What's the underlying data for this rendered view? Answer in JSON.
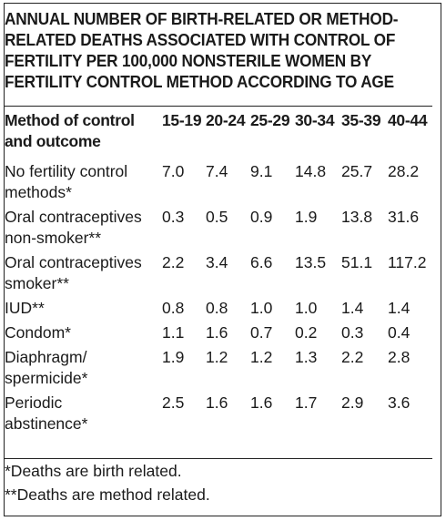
{
  "title_lines": [
    "ANNUAL NUMBER OF BIRTH-RELATED OR METHOD-",
    "RELATED DEATHS ASSOCIATED WITH CONTROL OF",
    "FERTILITY PER 100,000 NONSTERILE WOMEN BY",
    "FERTILITY CONTROL METHOD ACCORDING TO AGE"
  ],
  "table": {
    "header": {
      "method_line1": "Method of control",
      "method_line2": "and outcome",
      "ages": [
        "15-19",
        "20-24",
        "25-29",
        "30-34",
        "35-39",
        "40-44"
      ]
    },
    "rows": [
      {
        "label1": "No fertility control",
        "label2": "methods*",
        "values": [
          "7.0",
          "7.4",
          "9.1",
          "14.8",
          "25.7",
          "28.2"
        ]
      },
      {
        "label1": "Oral contraceptives",
        "label2": "non-smoker**",
        "values": [
          "0.3",
          "0.5",
          "0.9",
          "1.9",
          "13.8",
          "31.6"
        ]
      },
      {
        "label1": "Oral contraceptives",
        "label2": "smoker**",
        "values": [
          "2.2",
          "3.4",
          "6.6",
          "13.5",
          "51.1",
          "117.2"
        ]
      },
      {
        "label1": "IUD**",
        "label2": "",
        "values": [
          "0.8",
          "0.8",
          "1.0",
          "1.0",
          "1.4",
          "1.4"
        ]
      },
      {
        "label1": "Condom*",
        "label2": "",
        "values": [
          "1.1",
          "1.6",
          "0.7",
          "0.2",
          "0.3",
          "0.4"
        ]
      },
      {
        "label1": "Diaphragm/",
        "label2": "spermicide*",
        "values": [
          "1.9",
          "1.2",
          "1.2",
          "1.3",
          "2.2",
          "2.8"
        ]
      },
      {
        "label1": "Periodic",
        "label2": "abstinence*",
        "values": [
          "2.5",
          "1.6",
          "1.6",
          "1.7",
          "2.9",
          "3.6"
        ]
      }
    ]
  },
  "footnotes": [
    "*Deaths are birth related.",
    "**Deaths are method related."
  ]
}
